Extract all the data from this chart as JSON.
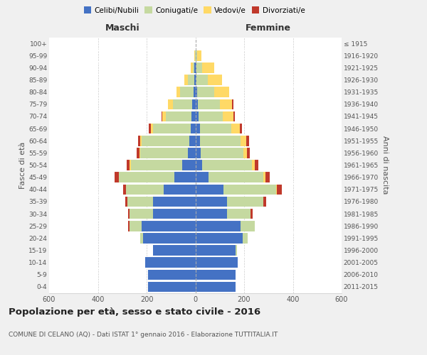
{
  "age_groups": [
    "0-4",
    "5-9",
    "10-14",
    "15-19",
    "20-24",
    "25-29",
    "30-34",
    "35-39",
    "40-44",
    "45-49",
    "50-54",
    "55-59",
    "60-64",
    "65-69",
    "70-74",
    "75-79",
    "80-84",
    "85-89",
    "90-94",
    "95-99",
    "100+"
  ],
  "birth_years": [
    "2011-2015",
    "2006-2010",
    "2001-2005",
    "1996-2000",
    "1991-1995",
    "1986-1990",
    "1981-1985",
    "1976-1980",
    "1971-1975",
    "1966-1970",
    "1961-1965",
    "1956-1960",
    "1951-1955",
    "1946-1950",
    "1941-1945",
    "1936-1940",
    "1931-1935",
    "1926-1930",
    "1921-1925",
    "1916-1920",
    "≤ 1915"
  ],
  "male": {
    "celibi": [
      195,
      195,
      205,
      175,
      215,
      220,
      175,
      175,
      130,
      85,
      55,
      30,
      25,
      18,
      15,
      12,
      8,
      5,
      3,
      0,
      0
    ],
    "coniugati": [
      0,
      0,
      0,
      0,
      10,
      50,
      95,
      105,
      155,
      230,
      210,
      195,
      195,
      155,
      105,
      80,
      55,
      25,
      8,
      2,
      0
    ],
    "vedovi": [
      0,
      0,
      0,
      0,
      0,
      0,
      0,
      0,
      0,
      0,
      5,
      5,
      5,
      10,
      15,
      20,
      15,
      15,
      8,
      2,
      0
    ],
    "divorziati": [
      0,
      0,
      0,
      0,
      0,
      5,
      5,
      8,
      10,
      15,
      12,
      10,
      10,
      8,
      5,
      0,
      0,
      0,
      0,
      0,
      0
    ]
  },
  "female": {
    "nubili": [
      165,
      165,
      175,
      165,
      195,
      185,
      130,
      130,
      115,
      55,
      28,
      22,
      20,
      18,
      12,
      10,
      8,
      5,
      3,
      0,
      0
    ],
    "coniugate": [
      0,
      0,
      0,
      5,
      20,
      60,
      95,
      150,
      215,
      225,
      205,
      175,
      165,
      130,
      100,
      90,
      70,
      45,
      25,
      8,
      0
    ],
    "vedove": [
      0,
      0,
      0,
      0,
      0,
      0,
      0,
      0,
      5,
      8,
      10,
      15,
      25,
      35,
      45,
      50,
      60,
      60,
      50,
      18,
      0
    ],
    "divorziate": [
      0,
      0,
      0,
      0,
      0,
      0,
      10,
      10,
      20,
      18,
      15,
      10,
      10,
      8,
      5,
      5,
      0,
      0,
      0,
      0,
      0
    ]
  },
  "colors": {
    "celibi": "#4472C4",
    "coniugati": "#C5D9A0",
    "vedovi": "#FFD966",
    "divorziati": "#C0392B"
  },
  "title": "Popolazione per età, sesso e stato civile - 2016",
  "subtitle": "COMUNE DI CELANO (AQ) - Dati ISTAT 1° gennaio 2016 - Elaborazione TUTTITALIA.IT",
  "xlabel_left": "Maschi",
  "xlabel_right": "Femmine",
  "ylabel_left": "Fasce di età",
  "ylabel_right": "Anni di nascita",
  "xlim": 600,
  "background_color": "#f0f0f0",
  "plot_bg": "#ffffff",
  "legend_labels": [
    "Celibi/Nubili",
    "Coniugati/e",
    "Vedovi/e",
    "Divorziati/e"
  ]
}
